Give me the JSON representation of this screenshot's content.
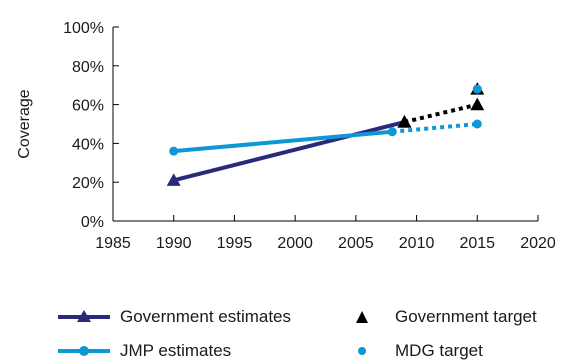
{
  "chart_data": {
    "type": "line",
    "title": "",
    "xlabel": "",
    "ylabel": "Coverage",
    "xlim": [
      1985,
      2020
    ],
    "ylim": [
      0,
      100
    ],
    "x_ticks": [
      "1985",
      "1990",
      "1995",
      "2000",
      "2005",
      "2010",
      "2015",
      "2020"
    ],
    "y_ticks": [
      "0%",
      "20%",
      "40%",
      "60%",
      "80%",
      "100%"
    ],
    "grid": false,
    "legend_position": "bottom",
    "series": [
      {
        "name": "Government estimates",
        "style": "line-triangle",
        "color": "#2b2a7a",
        "points": [
          [
            1990,
            21
          ],
          [
            2009,
            51
          ]
        ]
      },
      {
        "name": "JMP estimates",
        "style": "line-circle",
        "color": "#0e97d6",
        "points": [
          [
            1990,
            36
          ],
          [
            2008,
            46
          ]
        ]
      },
      {
        "name": "Government target",
        "style": "triangle",
        "color": "#000000",
        "points": [
          [
            2009,
            51
          ],
          [
            2015,
            60
          ],
          [
            2015,
            68
          ]
        ]
      },
      {
        "name": "MDG target",
        "style": "circle",
        "color": "#0e97d6",
        "points": [
          [
            2015,
            50
          ],
          [
            2015,
            68
          ]
        ]
      }
    ],
    "projections": [
      {
        "color": "#000000",
        "from": [
          2009,
          51
        ],
        "to": [
          2015,
          60
        ]
      },
      {
        "color": "#0e97d6",
        "from": [
          2008,
          46
        ],
        "to": [
          2015,
          50
        ]
      }
    ]
  },
  "legend": {
    "gov_estimates": "Government estimates",
    "gov_target": "Government target",
    "jmp_estimates": "JMP estimates",
    "mdg_target": "MDG target"
  }
}
